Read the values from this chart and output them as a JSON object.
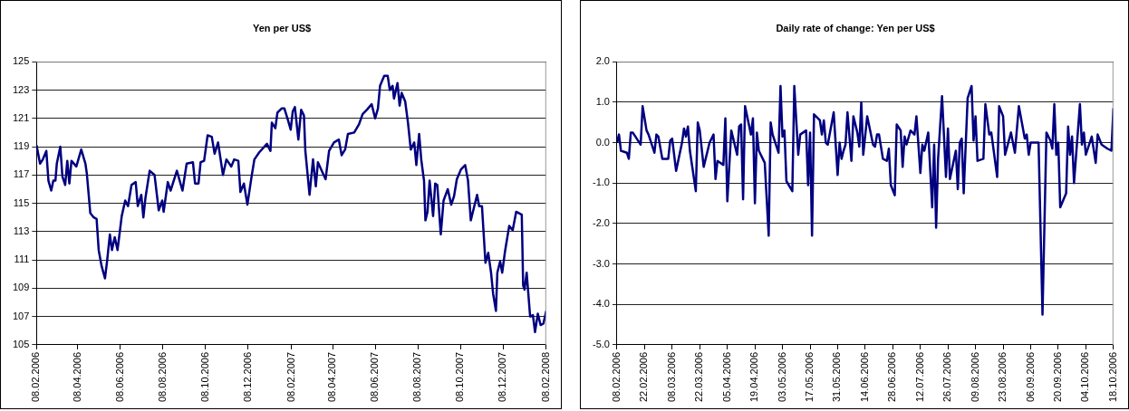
{
  "chart_data": [
    {
      "type": "line",
      "title": "Yen per US$",
      "color": "#000080",
      "grid": "y",
      "marker": "none",
      "x": [
        "2006-02-08",
        "2006-02-13",
        "2006-02-17",
        "2006-02-22",
        "2006-02-25",
        "2006-03-01",
        "2006-03-04",
        "2006-03-07",
        "2006-03-09",
        "2006-03-14",
        "2006-03-17",
        "2006-03-21",
        "2006-03-24",
        "2006-03-27",
        "2006-03-30",
        "2006-04-06",
        "2006-04-13",
        "2006-04-19",
        "2006-04-21",
        "2006-04-26",
        "2006-05-01",
        "2006-05-05",
        "2006-05-08",
        "2006-05-12",
        "2006-05-17",
        "2006-05-20",
        "2006-05-24",
        "2006-05-27",
        "2006-05-31",
        "2006-06-04",
        "2006-06-10",
        "2006-06-15",
        "2006-06-19",
        "2006-06-24",
        "2006-06-30",
        "2006-07-03",
        "2006-07-08",
        "2006-07-11",
        "2006-07-14",
        "2006-07-20",
        "2006-07-27",
        "2006-08-02",
        "2006-08-07",
        "2006-08-09",
        "2006-08-15",
        "2006-08-19",
        "2006-08-28",
        "2006-09-05",
        "2006-09-11",
        "2006-09-20",
        "2006-09-23",
        "2006-09-28",
        "2006-10-01",
        "2006-10-06",
        "2006-10-11",
        "2006-10-17",
        "2006-10-21",
        "2006-10-26",
        "2006-11-02",
        "2006-11-07",
        "2006-11-14",
        "2006-11-18",
        "2006-11-24",
        "2006-11-27",
        "2006-12-02",
        "2006-12-07",
        "2006-12-13",
        "2006-12-17",
        "2006-12-24",
        "2007-01-04",
        "2007-01-09",
        "2007-01-11",
        "2007-01-16",
        "2007-01-19",
        "2007-01-25",
        "2007-01-29",
        "2007-02-03",
        "2007-02-07",
        "2007-02-10",
        "2007-02-13",
        "2007-02-18",
        "2007-02-22",
        "2007-02-26",
        "2007-02-28",
        "2007-03-06",
        "2007-03-11",
        "2007-03-15",
        "2007-03-18",
        "2007-03-29",
        "2007-04-03",
        "2007-04-10",
        "2007-04-17",
        "2007-04-21",
        "2007-04-26",
        "2007-04-30",
        "2007-05-09",
        "2007-05-16",
        "2007-05-21",
        "2007-05-27",
        "2007-06-03",
        "2007-06-08",
        "2007-06-12",
        "2007-06-15",
        "2007-06-21",
        "2007-06-26",
        "2007-06-29",
        "2007-07-03",
        "2007-07-05",
        "2007-07-10",
        "2007-07-13",
        "2007-07-16",
        "2007-07-21",
        "2007-07-25",
        "2007-07-29",
        "2007-08-03",
        "2007-08-06",
        "2007-08-10",
        "2007-08-13",
        "2007-08-17",
        "2007-08-19",
        "2007-08-22",
        "2007-08-25",
        "2007-08-30",
        "2007-09-02",
        "2007-09-05",
        "2007-09-10",
        "2007-09-14",
        "2007-09-20",
        "2007-09-25",
        "2007-09-29",
        "2007-10-03",
        "2007-10-09",
        "2007-10-15",
        "2007-10-19",
        "2007-10-23",
        "2007-10-26",
        "2007-11-01",
        "2007-11-04",
        "2007-11-08",
        "2007-11-13",
        "2007-11-17",
        "2007-11-21",
        "2007-11-24",
        "2007-11-28",
        "2007-11-30",
        "2007-12-04",
        "2007-12-07",
        "2007-12-11",
        "2007-12-17",
        "2007-12-22",
        "2007-12-27",
        "2008-01-04",
        "2008-01-06",
        "2008-01-08",
        "2008-01-11",
        "2008-01-16",
        "2008-01-20",
        "2008-01-23",
        "2008-01-27",
        "2008-01-31",
        "2008-02-04",
        "2008-02-08"
      ],
      "values": [
        119.1,
        117.8,
        118.1,
        118.7,
        116.6,
        115.9,
        116.6,
        116.6,
        117.8,
        119.0,
        116.9,
        116.3,
        118.0,
        116.4,
        118.0,
        117.6,
        118.8,
        117.8,
        117.1,
        114.3,
        114.0,
        113.9,
        111.7,
        110.6,
        109.7,
        110.9,
        112.8,
        111.7,
        112.6,
        111.7,
        114.1,
        115.2,
        114.8,
        116.3,
        116.5,
        114.8,
        115.6,
        114.0,
        115.4,
        117.3,
        117.0,
        114.5,
        115.2,
        114.4,
        116.5,
        115.9,
        117.3,
        115.9,
        117.8,
        117.9,
        116.4,
        116.4,
        117.9,
        118.0,
        119.8,
        119.7,
        118.5,
        119.3,
        117.0,
        118.1,
        117.6,
        118.1,
        118.0,
        115.8,
        116.4,
        114.9,
        116.9,
        118.1,
        118.6,
        119.2,
        118.7,
        120.7,
        120.3,
        121.4,
        121.7,
        121.7,
        120.9,
        120.2,
        121.5,
        121.8,
        119.5,
        121.6,
        121.2,
        118.7,
        115.6,
        118.1,
        116.2,
        117.9,
        116.7,
        118.7,
        119.3,
        119.5,
        118.4,
        118.8,
        119.9,
        120.0,
        120.6,
        121.3,
        121.6,
        122.0,
        121.0,
        121.7,
        123.3,
        124.0,
        124.0,
        123.0,
        123.3,
        122.4,
        123.5,
        121.9,
        122.8,
        122.2,
        120.7,
        118.8,
        119.3,
        117.7,
        119.9,
        118.1,
        116.6,
        113.8,
        114.4,
        116.6,
        114.1,
        116.4,
        116.3,
        112.8,
        115.2,
        116.0,
        114.9,
        115.5,
        116.7,
        117.4,
        117.7,
        116.6,
        113.8,
        114.4,
        115.6,
        114.8,
        114.8,
        110.8,
        111.5,
        110.1,
        108.6,
        107.4,
        110.1,
        110.9,
        110.1,
        111.6,
        113.4,
        113.1,
        114.4,
        114.2,
        109.2,
        108.9,
        110.1,
        107.0,
        107.1,
        105.9,
        107.2,
        106.4,
        106.5,
        107.4
      ],
      "xlim": [
        "2006-02-08",
        "2008-02-08"
      ],
      "xticks": [
        {
          "value": "2006-02-08",
          "label": "08.02.2006"
        },
        {
          "value": "2006-04-08",
          "label": "08.04.2006"
        },
        {
          "value": "2006-06-08",
          "label": "08.06.2006"
        },
        {
          "value": "2006-08-08",
          "label": "08.08.2006"
        },
        {
          "value": "2006-10-08",
          "label": "08.10.2006"
        },
        {
          "value": "2006-12-08",
          "label": "08.12.2006"
        },
        {
          "value": "2007-02-08",
          "label": "08.02.2007"
        },
        {
          "value": "2007-04-08",
          "label": "08.04.2007"
        },
        {
          "value": "2007-06-08",
          "label": "08.06.2007"
        },
        {
          "value": "2007-08-08",
          "label": "08.08.2007"
        },
        {
          "value": "2007-10-08",
          "label": "08.10.2007"
        },
        {
          "value": "2007-12-08",
          "label": "08.12.2007"
        },
        {
          "value": "2008-02-08",
          "label": "08.02.2008"
        }
      ],
      "ylim": [
        105,
        125
      ],
      "yticks": [
        105,
        107,
        109,
        111,
        113,
        115,
        117,
        119,
        121,
        123,
        125
      ]
    },
    {
      "type": "line",
      "title": "Daily rate of change: Yen per US$",
      "color": "#000080",
      "grid": "y",
      "marker": "none",
      "x": [
        "2006-02-08",
        "2006-02-09",
        "2006-02-10",
        "2006-02-13",
        "2006-02-14",
        "2006-02-15",
        "2006-02-16",
        "2006-02-18",
        "2006-02-20",
        "2006-02-21",
        "2006-02-23",
        "2006-02-24",
        "2006-02-27",
        "2006-02-28",
        "2006-03-01",
        "2006-03-03",
        "2006-03-06",
        "2006-03-07",
        "2006-03-08",
        "2006-03-10",
        "2006-03-13",
        "2006-03-14",
        "2006-03-15",
        "2006-03-16",
        "2006-03-17",
        "2006-03-20",
        "2006-03-21",
        "2006-03-22",
        "2006-03-24",
        "2006-03-27",
        "2006-03-29",
        "2006-03-30",
        "2006-03-31",
        "2006-04-03",
        "2006-04-04",
        "2006-04-05",
        "2006-04-07",
        "2006-04-10",
        "2006-04-11",
        "2006-04-12",
        "2006-04-13",
        "2006-04-14",
        "2006-04-17",
        "2006-04-18",
        "2006-04-19",
        "2006-04-20",
        "2006-04-21",
        "2006-04-24",
        "2006-04-26",
        "2006-04-27",
        "2006-04-28",
        "2006-05-01",
        "2006-05-02",
        "2006-05-03",
        "2006-05-04",
        "2006-05-05",
        "2006-05-08",
        "2006-05-09",
        "2006-05-11",
        "2006-05-12",
        "2006-05-15",
        "2006-05-16",
        "2006-05-17",
        "2006-05-18",
        "2006-05-19",
        "2006-05-22",
        "2006-05-23",
        "2006-05-24",
        "2006-05-25",
        "2006-05-26",
        "2006-05-29",
        "2006-05-31",
        "2006-06-01",
        "2006-06-02",
        "2006-06-03",
        "2006-06-04",
        "2006-06-05",
        "2006-06-07",
        "2006-06-08",
        "2006-06-10",
        "2006-06-11",
        "2006-06-12",
        "2006-06-13",
        "2006-06-15",
        "2006-06-18",
        "2006-06-19",
        "2006-06-20",
        "2006-06-21",
        "2006-06-23",
        "2006-06-25",
        "2006-06-26",
        "2006-06-27",
        "2006-06-29",
        "2006-06-30",
        "2006-07-02",
        "2006-07-03",
        "2006-07-04",
        "2006-07-05",
        "2006-07-07",
        "2006-07-09",
        "2006-07-10",
        "2006-07-12",
        "2006-07-13",
        "2006-07-14",
        "2006-07-16",
        "2006-07-18",
        "2006-07-19",
        "2006-07-20",
        "2006-07-21",
        "2006-07-23",
        "2006-07-25",
        "2006-07-26",
        "2006-07-27",
        "2006-07-30",
        "2006-07-31",
        "2006-08-01",
        "2006-08-02",
        "2006-08-03",
        "2006-08-05",
        "2006-08-07",
        "2006-08-08",
        "2006-08-09",
        "2006-08-10",
        "2006-08-13",
        "2006-08-14",
        "2006-08-16",
        "2006-08-17",
        "2006-08-20",
        "2006-08-21",
        "2006-08-23",
        "2006-08-24",
        "2006-08-27",
        "2006-08-29",
        "2006-08-31",
        "2006-09-03",
        "2006-09-04",
        "2006-09-05",
        "2006-09-06",
        "2006-09-10",
        "2006-09-12",
        "2006-09-14",
        "2006-09-16",
        "2006-09-17",
        "2006-09-18",
        "2006-09-19",
        "2006-09-20",
        "2006-09-21",
        "2006-09-24",
        "2006-09-25",
        "2006-09-26",
        "2006-09-27",
        "2006-09-28",
        "2006-10-01",
        "2006-10-02",
        "2006-10-03",
        "2006-10-04",
        "2006-10-07",
        "2006-10-09",
        "2006-10-10",
        "2006-10-12",
        "2006-10-15",
        "2006-10-17",
        "2006-10-18"
      ],
      "values": [
        0.0,
        0.2,
        -0.2,
        -0.25,
        -0.4,
        0.25,
        0.25,
        0.1,
        -0.05,
        0.9,
        0.3,
        0.2,
        -0.25,
        0.2,
        0.15,
        -0.4,
        -0.4,
        0.05,
        0.1,
        -0.7,
        0.0,
        0.35,
        0.15,
        0.4,
        -0.2,
        -1.2,
        0.5,
        0.3,
        -0.6,
        0.0,
        0.2,
        -0.9,
        -0.45,
        -0.55,
        0.6,
        -1.45,
        0.3,
        -0.3,
        0.4,
        0.45,
        -1.4,
        0.9,
        0.2,
        0.6,
        -1.5,
        0.25,
        -0.2,
        -0.5,
        -2.3,
        0.5,
        0.2,
        -0.25,
        1.4,
        0.15,
        0.3,
        -0.95,
        -1.2,
        1.4,
        -0.3,
        0.2,
        0.3,
        -1.05,
        0.25,
        -2.3,
        0.7,
        0.55,
        0.2,
        0.55,
        0.0,
        -0.05,
        0.75,
        -0.8,
        0.0,
        -0.4,
        -0.2,
        -0.05,
        0.75,
        -0.45,
        0.65,
        0.25,
        -0.1,
        1.0,
        -0.3,
        0.65,
        -0.05,
        -0.1,
        0.2,
        0.2,
        -0.4,
        -0.45,
        -0.15,
        -1.05,
        -1.3,
        0.45,
        0.3,
        -0.6,
        0.15,
        -0.05,
        0.3,
        0.2,
        0.65,
        -0.75,
        -0.05,
        -0.2,
        0.25,
        -1.6,
        -0.05,
        -2.1,
        -0.4,
        1.15,
        -0.85,
        0.35,
        -0.9,
        -0.2,
        -1.15,
        0.0,
        0.1,
        -1.25,
        1.1,
        1.4,
        0.05,
        0.65,
        -0.45,
        -0.4,
        0.95,
        0.2,
        0.25,
        -0.85,
        0.9,
        0.65,
        -0.3,
        0.25,
        -0.25,
        0.9,
        0.1,
        0.2,
        -0.3,
        0.0,
        0.0,
        -4.25,
        0.25,
        0.05,
        -0.15,
        0.95,
        -0.3,
        0.0,
        -1.6,
        -1.25,
        0.4,
        -0.3,
        0.15,
        -1.0,
        0.95,
        -0.05,
        0.25,
        -0.3,
        0.15,
        -0.5,
        0.2,
        -0.05,
        -0.15,
        -0.2,
        0.85
      ],
      "xlim": [
        "2006-02-08",
        "2006-10-18"
      ],
      "xticks": [
        {
          "value": "2006-02-08",
          "label": "08.02.2006"
        },
        {
          "value": "2006-02-22",
          "label": "22.02.2006"
        },
        {
          "value": "2006-03-08",
          "label": "08.03.2006"
        },
        {
          "value": "2006-03-22",
          "label": "22.03.2006"
        },
        {
          "value": "2006-04-05",
          "label": "05.04.2006"
        },
        {
          "value": "2006-04-19",
          "label": "19.04.2006"
        },
        {
          "value": "2006-05-03",
          "label": "03.05.2006"
        },
        {
          "value": "2006-05-17",
          "label": "17.05.2006"
        },
        {
          "value": "2006-05-31",
          "label": "31.05.2006"
        },
        {
          "value": "2006-06-14",
          "label": "14.06.2006"
        },
        {
          "value": "2006-06-28",
          "label": "28.06.2006"
        },
        {
          "value": "2006-07-12",
          "label": "12.07.2006"
        },
        {
          "value": "2006-07-26",
          "label": "26.07.2006"
        },
        {
          "value": "2006-08-09",
          "label": "09.08.2006"
        },
        {
          "value": "2006-08-23",
          "label": "23.08.2006"
        },
        {
          "value": "2006-09-06",
          "label": "06.09.2006"
        },
        {
          "value": "2006-09-20",
          "label": "20.09.2006"
        },
        {
          "value": "2006-10-04",
          "label": "04.10.2006"
        },
        {
          "value": "2006-10-18",
          "label": "18.10.2006"
        }
      ],
      "ylim": [
        -5,
        2
      ],
      "yticks": [
        {
          "value": -5,
          "label": "-5.0"
        },
        {
          "value": -4,
          "label": "-4.0"
        },
        {
          "value": -3,
          "label": "-3.0"
        },
        {
          "value": -2,
          "label": "-2.0"
        },
        {
          "value": -1,
          "label": "-1.0"
        },
        {
          "value": 0,
          "label": "0.0"
        },
        {
          "value": 1,
          "label": "1.0"
        },
        {
          "value": 2,
          "label": "2.0"
        }
      ]
    }
  ]
}
